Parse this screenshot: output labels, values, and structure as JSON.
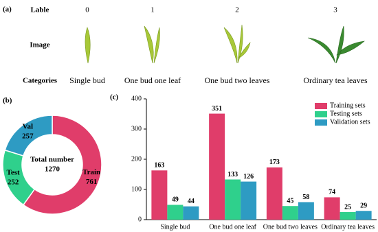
{
  "panel_a": {
    "panel_label": "(a)",
    "row_headers": [
      "Lable",
      "Image",
      "Categories"
    ],
    "columns": [
      {
        "lable": "0",
        "category": "Single bud"
      },
      {
        "lable": "1",
        "category": "One bud one leaf"
      },
      {
        "lable": "2",
        "category": "One bud two leaves"
      },
      {
        "lable": "3",
        "category": "Ordinary tea leaves"
      }
    ]
  },
  "chart_data": [
    {
      "type": "donut",
      "panel_label": "(b)",
      "center_label": "Total number",
      "total": 1270,
      "categories": [
        "Train",
        "Test",
        "Val"
      ],
      "values": [
        761,
        252,
        257
      ],
      "colors": [
        "#e03d6a",
        "#2fd08c",
        "#2e9bc3"
      ]
    },
    {
      "type": "bar",
      "panel_label": "(c)",
      "categories": [
        "Single bud",
        "One bud one leaf",
        "One bud two leaves",
        "Ordinary tea leaves"
      ],
      "series": [
        {
          "name": "Training sets",
          "color": "#e03d6a",
          "values": [
            163,
            351,
            173,
            74
          ]
        },
        {
          "name": "Testing sets",
          "color": "#2fd08c",
          "values": [
            49,
            133,
            45,
            25
          ]
        },
        {
          "name": "Validation sets",
          "color": "#2e9bc3",
          "values": [
            44,
            126,
            58,
            29
          ]
        }
      ],
      "ylim": [
        0,
        400
      ],
      "yticks": [
        0,
        100,
        200,
        300,
        400
      ],
      "legend": "top-right"
    }
  ]
}
